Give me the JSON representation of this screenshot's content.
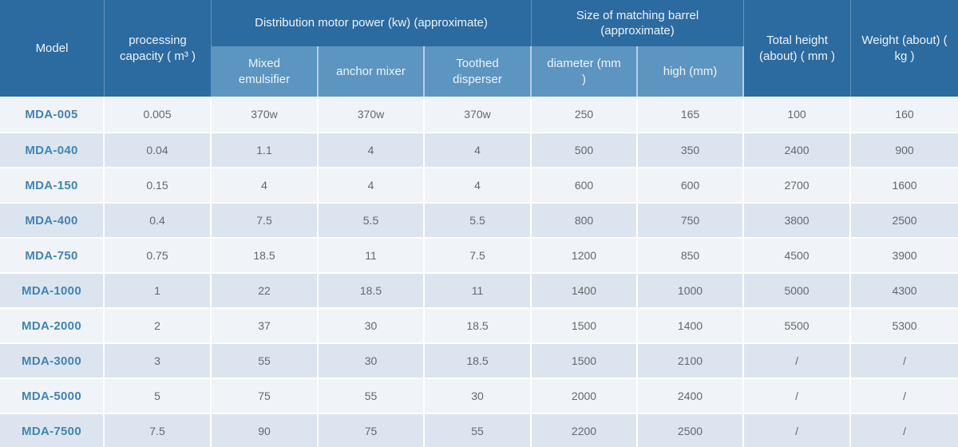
{
  "theme": {
    "header_dark": "#2c6b9f",
    "header_light": "#5d95c1",
    "header_text": "#ecf3fa",
    "model_blue": "#4184b5",
    "row_odd": "#f0f3f7",
    "row_even": "#dce5ef",
    "cell_text": "#63696f"
  },
  "table": {
    "header": {
      "model": "Model",
      "capacity": "processing capacity ( m³ )",
      "motor_group": "Distribution motor power (kw) (approximate)",
      "motor_sub": [
        "Mixed emulsifier",
        "anchor mixer",
        "Toothed disperser"
      ],
      "barrel_group": "Size of matching barrel (approximate)",
      "barrel_sub": [
        "diameter (mm )",
        "high (mm)"
      ],
      "total_height": "Total height (about) ( mm )",
      "weight": "Weight (about) ( kg )"
    },
    "rows": [
      {
        "model": "MDA-005",
        "values": [
          "0.005",
          "370w",
          "370w",
          "370w",
          "250",
          "165",
          "100",
          "160"
        ]
      },
      {
        "model": "MDA-040",
        "values": [
          "0.04",
          "1.1",
          "4",
          "4",
          "500",
          "350",
          "2400",
          "900"
        ]
      },
      {
        "model": "MDA-150",
        "values": [
          "0.15",
          "4",
          "4",
          "4",
          "600",
          "600",
          "2700",
          "1600"
        ]
      },
      {
        "model": "MDA-400",
        "values": [
          "0.4",
          "7.5",
          "5.5",
          "5.5",
          "800",
          "750",
          "3800",
          "2500"
        ]
      },
      {
        "model": "MDA-750",
        "values": [
          "0.75",
          "18.5",
          "11",
          "7.5",
          "1200",
          "850",
          "4500",
          "3900"
        ]
      },
      {
        "model": "MDA-1000",
        "values": [
          "1",
          "22",
          "18.5",
          "11",
          "1400",
          "1000",
          "5000",
          "4300"
        ]
      },
      {
        "model": "MDA-2000",
        "values": [
          "2",
          "37",
          "30",
          "18.5",
          "1500",
          "1400",
          "5500",
          "5300"
        ]
      },
      {
        "model": "MDA-3000",
        "values": [
          "3",
          "55",
          "30",
          "18.5",
          "1500",
          "2100",
          "/",
          "/"
        ]
      },
      {
        "model": "MDA-5000",
        "values": [
          "5",
          "75",
          "55",
          "30",
          "2000",
          "2400",
          "/",
          "/"
        ]
      },
      {
        "model": "MDA-7500",
        "values": [
          "7.5",
          "90",
          "75",
          "55",
          "2200",
          "2500",
          "/",
          "/"
        ]
      }
    ]
  }
}
